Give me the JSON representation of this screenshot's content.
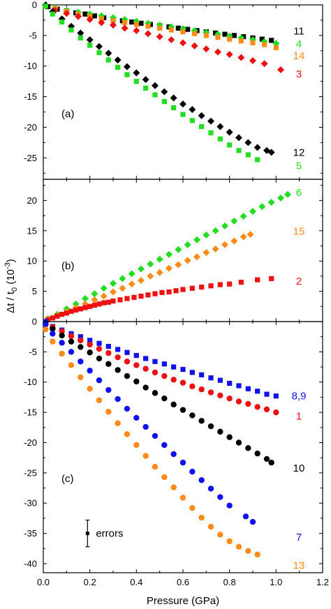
{
  "figure": {
    "ylabel_main": "Δt / t",
    "ylabel_sub": "0",
    "ylabel_unit_open": " (10",
    "ylabel_unit_exp": "-3",
    "ylabel_unit_close": ")",
    "xlabel": "Pressure (GPa)",
    "x_ticks": [
      "0.0",
      "0.2",
      "0.4",
      "0.6",
      "0.8",
      "1.0",
      "1.2"
    ],
    "errors_label": "errors"
  },
  "chart_data": [
    {
      "type": "scatter",
      "panel_label": "(a)",
      "xlim": [
        0,
        1.2
      ],
      "ylim": [
        -28.5,
        0
      ],
      "y_ticks": [
        0,
        -5,
        -10,
        -15,
        -20,
        -25
      ],
      "series": [
        {
          "name": "11",
          "color": "#000000",
          "marker": "square",
          "x": [
            0.02,
            0.06,
            0.1,
            0.14,
            0.18,
            0.22,
            0.26,
            0.3,
            0.34,
            0.38,
            0.42,
            0.46,
            0.5,
            0.54,
            0.58,
            0.62,
            0.66,
            0.7,
            0.74,
            0.78,
            0.82,
            0.86,
            0.9,
            0.94,
            0.98
          ],
          "y": [
            -0.3,
            -0.7,
            -1.0,
            -1.3,
            -1.5,
            -1.8,
            -2.1,
            -2.3,
            -2.6,
            -2.8,
            -3.0,
            -3.2,
            -3.4,
            -3.6,
            -3.8,
            -4.0,
            -4.2,
            -4.4,
            -4.6,
            -4.8,
            -5.0,
            -5.2,
            -5.4,
            -5.6,
            -5.8
          ]
        },
        {
          "name": "4",
          "color": "#22dd22",
          "marker": "diamond",
          "x": [
            0.05,
            0.1,
            0.15,
            0.2,
            0.25,
            0.3,
            0.35,
            0.4,
            0.45,
            0.5,
            0.55,
            0.6,
            0.65,
            0.7,
            0.75,
            0.8,
            0.85,
            0.9,
            0.95,
            1.0
          ],
          "y": [
            -0.5,
            -0.9,
            -1.2,
            -1.5,
            -1.8,
            -2.1,
            -2.4,
            -2.7,
            -3.0,
            -3.3,
            -3.6,
            -3.9,
            -4.2,
            -4.5,
            -4.8,
            -5.1,
            -5.4,
            -5.7,
            -6.0,
            -6.3
          ]
        },
        {
          "name": "14",
          "color": "#ff8c1a",
          "marker": "square",
          "x": [
            0.05,
            0.1,
            0.15,
            0.2,
            0.25,
            0.3,
            0.35,
            0.4,
            0.45,
            0.5,
            0.55,
            0.6,
            0.65,
            0.7,
            0.75,
            0.8,
            0.85,
            0.9,
            0.95,
            1.0
          ],
          "y": [
            -0.6,
            -1.1,
            -1.5,
            -1.9,
            -2.3,
            -2.6,
            -2.9,
            -3.2,
            -3.5,
            -3.8,
            -4.1,
            -4.4,
            -4.7,
            -5.0,
            -5.3,
            -5.6,
            -5.9,
            -6.2,
            -6.5,
            -7.0
          ]
        },
        {
          "name": "3",
          "color": "#ee1111",
          "marker": "diamond",
          "x": [
            0.05,
            0.1,
            0.15,
            0.2,
            0.25,
            0.3,
            0.35,
            0.4,
            0.45,
            0.5,
            0.55,
            0.6,
            0.65,
            0.7,
            0.75,
            0.8,
            0.85,
            0.9,
            0.95,
            1.02
          ],
          "y": [
            -0.9,
            -1.4,
            -1.9,
            -2.4,
            -2.9,
            -3.3,
            -3.8,
            -4.2,
            -4.7,
            -5.2,
            -5.7,
            -6.2,
            -6.7,
            -7.2,
            -7.7,
            -8.1,
            -8.6,
            -9.1,
            -9.6,
            -10.6
          ]
        },
        {
          "name": "12",
          "color": "#000000",
          "marker": "diamond",
          "x": [
            0.01,
            0.04,
            0.08,
            0.12,
            0.16,
            0.2,
            0.24,
            0.28,
            0.32,
            0.36,
            0.4,
            0.44,
            0.48,
            0.52,
            0.56,
            0.6,
            0.64,
            0.68,
            0.72,
            0.76,
            0.8,
            0.84,
            0.88,
            0.92,
            0.96,
            0.98
          ],
          "y": [
            0,
            -1.1,
            -2.3,
            -3.5,
            -4.6,
            -5.7,
            -6.8,
            -7.9,
            -9.0,
            -10.1,
            -11.1,
            -12.2,
            -13.2,
            -14.2,
            -15.2,
            -16.2,
            -17.1,
            -18.1,
            -19.0,
            -19.9,
            -20.8,
            -21.7,
            -22.5,
            -23.3,
            -23.8,
            -24.1
          ]
        },
        {
          "name": "5",
          "color": "#22dd22",
          "marker": "square",
          "x": [
            0.01,
            0.04,
            0.08,
            0.12,
            0.16,
            0.2,
            0.24,
            0.28,
            0.32,
            0.36,
            0.4,
            0.44,
            0.48,
            0.52,
            0.56,
            0.6,
            0.64,
            0.68,
            0.72,
            0.76,
            0.8,
            0.84,
            0.88,
            0.92
          ],
          "y": [
            -0.2,
            -1.5,
            -2.8,
            -4.1,
            -5.4,
            -6.6,
            -7.8,
            -9.0,
            -10.2,
            -11.4,
            -12.5,
            -13.6,
            -14.7,
            -15.8,
            -16.8,
            -17.9,
            -18.9,
            -19.9,
            -20.9,
            -21.9,
            -22.9,
            -23.8,
            -24.5,
            -25.3
          ]
        }
      ],
      "series_labels": [
        {
          "text": "11",
          "color": "#000000",
          "y": -4.3
        },
        {
          "text": "4",
          "color": "#22dd22",
          "y": -6.4
        },
        {
          "text": "14",
          "color": "#ff8c1a",
          "y": -8.3
        },
        {
          "text": "3",
          "color": "#ee1111",
          "y": -11.3
        },
        {
          "text": "12",
          "color": "#000000",
          "y": -24.1
        },
        {
          "text": "5",
          "color": "#22dd22",
          "y": -26.3
        }
      ]
    },
    {
      "type": "scatter",
      "panel_label": "(b)",
      "xlim": [
        0,
        1.2
      ],
      "ylim": [
        0,
        23.5
      ],
      "y_ticks": [
        0,
        5,
        10,
        15,
        20
      ],
      "series": [
        {
          "name": "6",
          "color": "#22dd22",
          "marker": "diamond",
          "x": [
            0.02,
            0.06,
            0.1,
            0.14,
            0.18,
            0.22,
            0.26,
            0.3,
            0.34,
            0.38,
            0.42,
            0.46,
            0.5,
            0.54,
            0.58,
            0.62,
            0.66,
            0.7,
            0.74,
            0.78,
            0.82,
            0.86,
            0.9,
            0.94,
            0.98,
            1.02,
            1.05
          ],
          "y": [
            0.5,
            1.2,
            2.1,
            2.9,
            3.8,
            4.6,
            5.5,
            6.3,
            7.1,
            7.9,
            8.7,
            9.5,
            10.3,
            11.1,
            11.9,
            12.7,
            13.5,
            14.3,
            15.0,
            15.8,
            16.6,
            17.4,
            18.2,
            19.0,
            19.7,
            20.4,
            21.0
          ]
        },
        {
          "name": "15",
          "color": "#ff8c1a",
          "marker": "diamond",
          "x": [
            0.02,
            0.06,
            0.1,
            0.14,
            0.18,
            0.22,
            0.26,
            0.3,
            0.34,
            0.38,
            0.42,
            0.46,
            0.5,
            0.54,
            0.58,
            0.62,
            0.66,
            0.7,
            0.74,
            0.78,
            0.82,
            0.86,
            0.89
          ],
          "y": [
            0.4,
            1.0,
            1.6,
            2.3,
            2.9,
            3.6,
            4.2,
            4.9,
            5.5,
            6.2,
            6.8,
            7.5,
            8.1,
            8.8,
            9.4,
            10.1,
            10.7,
            11.4,
            12.0,
            12.7,
            13.3,
            14.0,
            14.4
          ]
        },
        {
          "name": "2",
          "color": "#ee1111",
          "marker": "square",
          "x": [
            0.02,
            0.04,
            0.06,
            0.08,
            0.1,
            0.12,
            0.14,
            0.16,
            0.18,
            0.2,
            0.22,
            0.24,
            0.26,
            0.28,
            0.3,
            0.33,
            0.36,
            0.39,
            0.42,
            0.45,
            0.48,
            0.51,
            0.54,
            0.57,
            0.6,
            0.64,
            0.68,
            0.72,
            0.76,
            0.8,
            0.85,
            0.92,
            0.98
          ],
          "y": [
            0.3,
            0.6,
            0.9,
            1.2,
            1.4,
            1.7,
            1.9,
            2.1,
            2.3,
            2.5,
            2.7,
            2.9,
            3.1,
            3.2,
            3.4,
            3.6,
            3.8,
            4.0,
            4.2,
            4.4,
            4.6,
            4.8,
            4.9,
            5.1,
            5.3,
            5.5,
            5.7,
            5.9,
            6.1,
            6.2,
            6.5,
            6.9,
            7.1
          ]
        }
      ],
      "series_labels": [
        {
          "text": "6",
          "color": "#22dd22",
          "y": 21.3
        },
        {
          "text": "15",
          "color": "#ff8c1a",
          "y": 14.9
        },
        {
          "text": "2",
          "color": "#ee1111",
          "y": 6.7
        }
      ]
    },
    {
      "type": "scatter",
      "panel_label": "(c)",
      "xlim": [
        0,
        1.2
      ],
      "ylim": [
        -41.5,
        0
      ],
      "y_ticks": [
        -5,
        -10,
        -15,
        -20,
        -25,
        -30,
        -35,
        -40
      ],
      "series": [
        {
          "name": "8,9",
          "color": "#1111ee",
          "marker": "square",
          "x": [
            0.01,
            0.04,
            0.08,
            0.12,
            0.16,
            0.2,
            0.24,
            0.28,
            0.32,
            0.36,
            0.4,
            0.44,
            0.48,
            0.52,
            0.56,
            0.6,
            0.64,
            0.68,
            0.72,
            0.76,
            0.8,
            0.84,
            0.88,
            0.92,
            0.96,
            1.0
          ],
          "y": [
            0,
            -0.8,
            -1.4,
            -2.0,
            -2.5,
            -3.1,
            -3.6,
            -4.1,
            -4.6,
            -5.1,
            -5.6,
            -6.1,
            -6.6,
            -7.0,
            -7.5,
            -7.9,
            -8.4,
            -8.8,
            -9.3,
            -9.7,
            -10.2,
            -10.6,
            -11.1,
            -11.5,
            -12.0,
            -12.3
          ]
        },
        {
          "name": "1",
          "color": "#ee1111",
          "marker": "circle",
          "x": [
            0.04,
            0.08,
            0.12,
            0.16,
            0.2,
            0.24,
            0.28,
            0.32,
            0.36,
            0.4,
            0.44,
            0.48,
            0.52,
            0.56,
            0.6,
            0.64,
            0.68,
            0.72,
            0.76,
            0.8,
            0.84,
            0.88,
            0.92,
            0.96,
            1.0
          ],
          "y": [
            -0.9,
            -1.6,
            -2.4,
            -3.1,
            -3.8,
            -4.5,
            -5.2,
            -5.9,
            -6.6,
            -7.2,
            -7.8,
            -8.4,
            -9.0,
            -9.6,
            -10.1,
            -10.7,
            -11.2,
            -11.7,
            -12.2,
            -12.7,
            -13.2,
            -13.6,
            -14.1,
            -14.5,
            -15.0
          ]
        },
        {
          "name": "10",
          "color": "#000000",
          "marker": "circle",
          "x": [
            0.01,
            0.04,
            0.08,
            0.12,
            0.16,
            0.2,
            0.24,
            0.28,
            0.32,
            0.36,
            0.4,
            0.44,
            0.48,
            0.52,
            0.56,
            0.6,
            0.64,
            0.68,
            0.72,
            0.76,
            0.8,
            0.84,
            0.88,
            0.92,
            0.96,
            0.98
          ],
          "y": [
            -0.3,
            -1.2,
            -2.3,
            -3.3,
            -4.2,
            -5.1,
            -6.1,
            -7.0,
            -8.0,
            -9.0,
            -9.9,
            -10.9,
            -11.8,
            -12.7,
            -13.7,
            -14.6,
            -15.5,
            -16.4,
            -17.3,
            -18.2,
            -19.1,
            -20.0,
            -20.9,
            -21.8,
            -22.7,
            -23.3
          ]
        },
        {
          "name": "7",
          "color": "#1111ee",
          "marker": "circle",
          "x": [
            0.01,
            0.04,
            0.08,
            0.12,
            0.16,
            0.2,
            0.24,
            0.28,
            0.32,
            0.36,
            0.4,
            0.44,
            0.48,
            0.52,
            0.56,
            0.6,
            0.64,
            0.68,
            0.72,
            0.76,
            0.8,
            0.87,
            0.9
          ],
          "y": [
            -0.5,
            -2.0,
            -3.5,
            -5.0,
            -6.6,
            -8.1,
            -9.7,
            -11.3,
            -12.8,
            -14.4,
            -15.9,
            -17.4,
            -18.9,
            -20.4,
            -21.9,
            -23.3,
            -24.8,
            -26.2,
            -27.6,
            -29.0,
            -30.4,
            -32.2,
            -33.1
          ]
        },
        {
          "name": "13",
          "color": "#ff8c1a",
          "marker": "circle",
          "x": [
            0.01,
            0.04,
            0.08,
            0.12,
            0.16,
            0.2,
            0.24,
            0.28,
            0.32,
            0.36,
            0.4,
            0.44,
            0.48,
            0.52,
            0.56,
            0.6,
            0.64,
            0.68,
            0.72,
            0.76,
            0.8,
            0.84,
            0.88,
            0.92
          ],
          "y": [
            -1.3,
            -3.3,
            -5.3,
            -7.2,
            -9.2,
            -11.1,
            -13.0,
            -14.9,
            -16.8,
            -18.6,
            -20.4,
            -22.2,
            -24.0,
            -25.7,
            -27.4,
            -29.1,
            -30.8,
            -32.4,
            -33.9,
            -35.2,
            -36.3,
            -37.2,
            -37.9,
            -38.5
          ]
        }
      ],
      "series_labels": [
        {
          "text": "8,9",
          "color": "#1111ee",
          "y": -12.3
        },
        {
          "text": "1",
          "color": "#ee1111",
          "y": -15.6
        },
        {
          "text": "10",
          "color": "#000000",
          "y": -24.2
        },
        {
          "text": "7",
          "color": "#1111ee",
          "y": -35.6
        },
        {
          "text": "13",
          "color": "#ff8c1a",
          "y": -40.3
        }
      ],
      "error_bar": {
        "x": 0.19,
        "y": -35,
        "half_height": 2.2
      }
    }
  ]
}
